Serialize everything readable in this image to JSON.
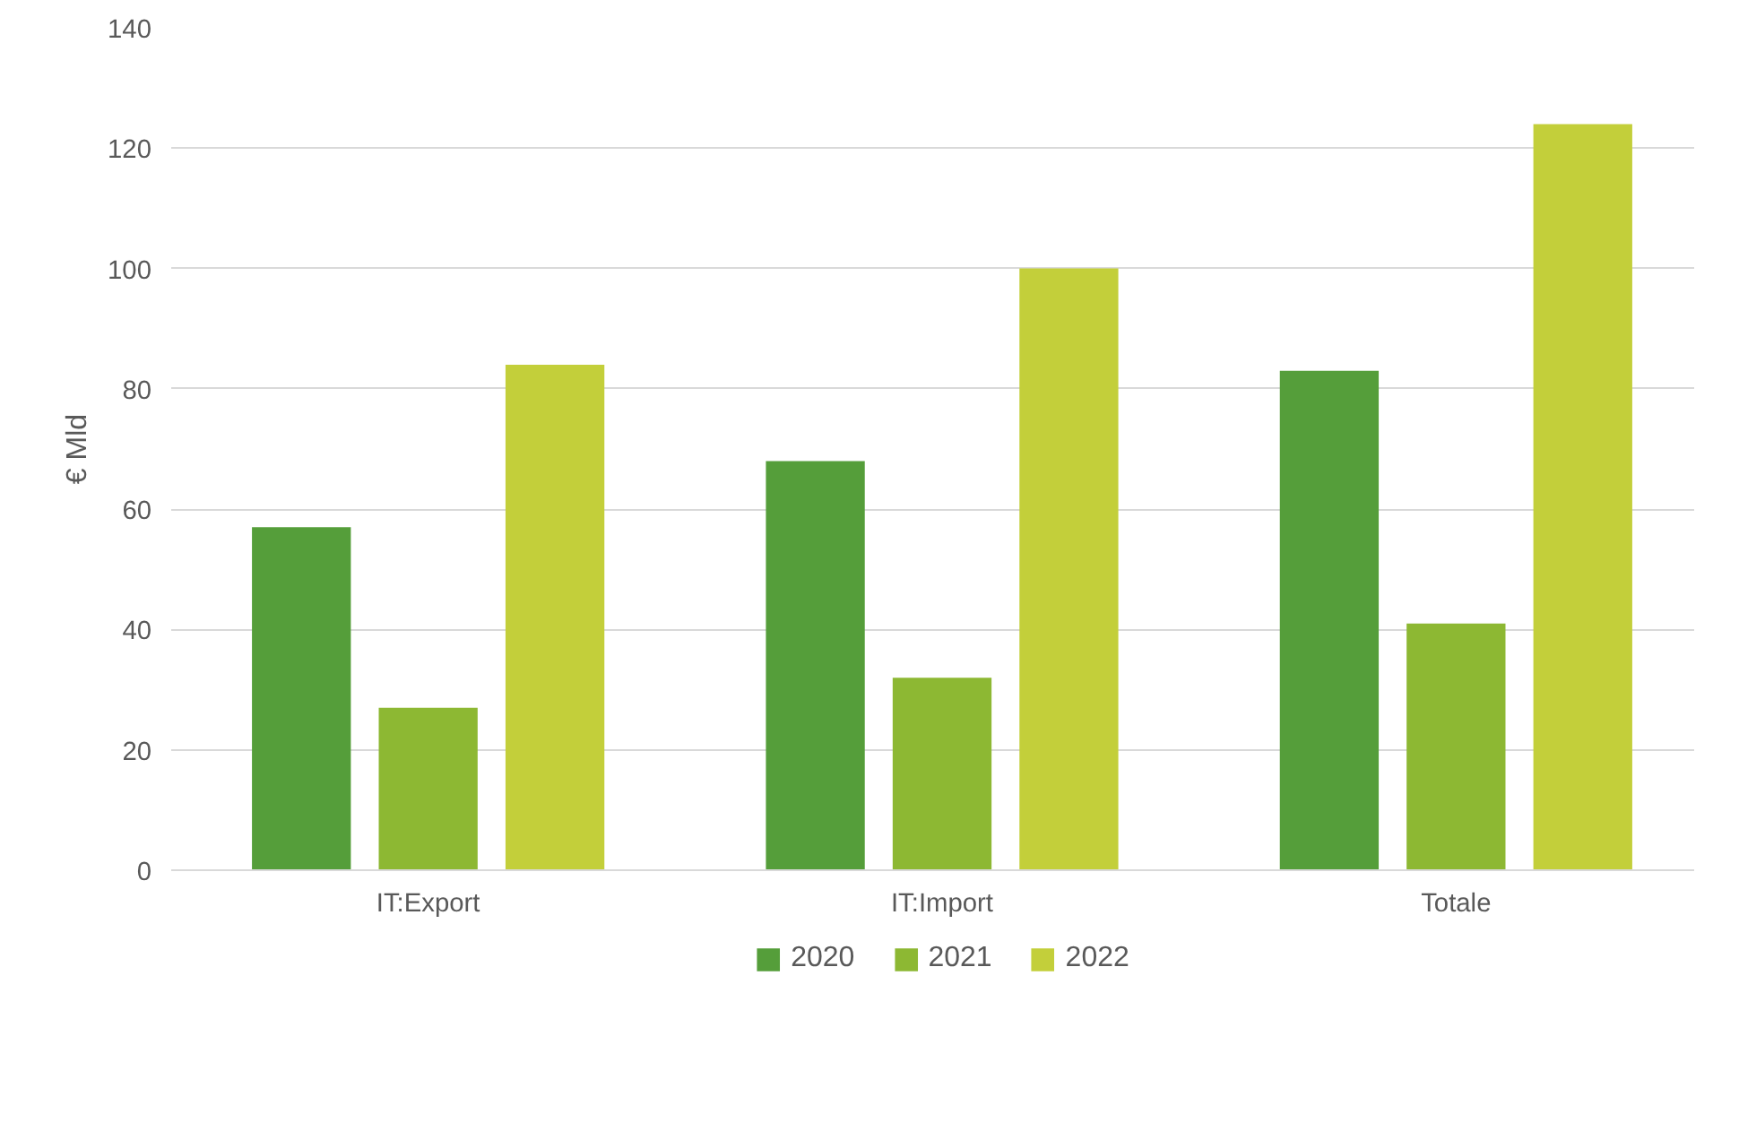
{
  "chart_data": {
    "type": "bar",
    "ylabel": "€ Mld",
    "categories": [
      "IT:Export",
      "IT:Import",
      "Totale"
    ],
    "series": [
      {
        "name": "2020",
        "color": "#559e3a",
        "values": [
          57,
          68,
          83
        ]
      },
      {
        "name": "2021",
        "color": "#8db833",
        "values": [
          27,
          32,
          41
        ]
      },
      {
        "name": "2022",
        "color": "#c3cf3a",
        "values": [
          84,
          100,
          124
        ]
      }
    ],
    "ylim": [
      0,
      140
    ],
    "yticks": [
      0,
      20,
      40,
      60,
      80,
      100,
      120,
      140
    ],
    "grid": "y",
    "legend": "bottom"
  }
}
